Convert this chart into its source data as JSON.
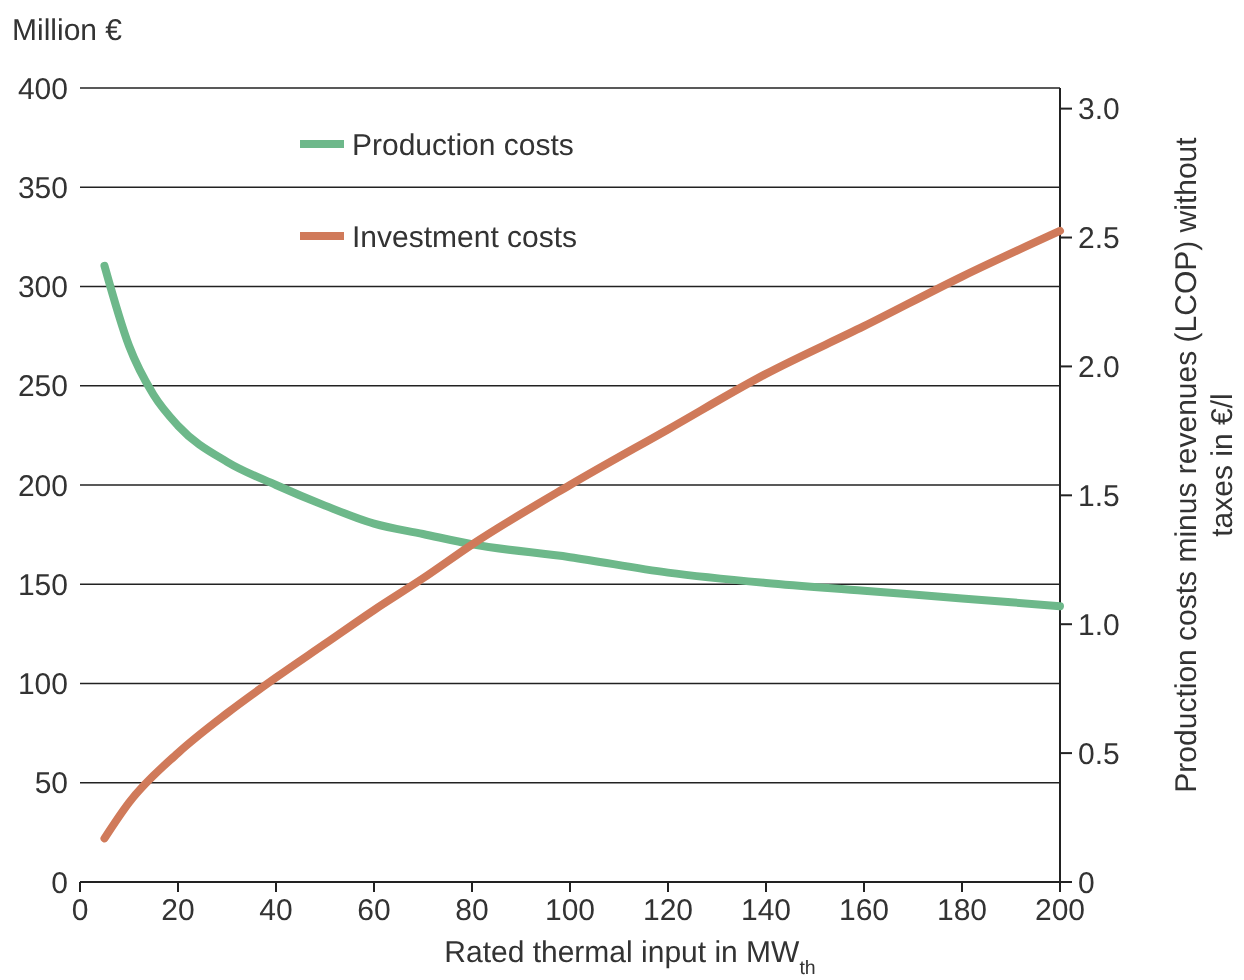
{
  "chart_data": {
    "type": "line",
    "ylabel": "Million €",
    "y2label": "Production costs minus revenues (LCOP) without taxes in €/l",
    "xlabel": "Rated thermal input in MW$_{th}$",
    "xlim": [
      0,
      200
    ],
    "xticks": [
      0,
      20,
      40,
      60,
      80,
      100,
      120,
      140,
      160,
      180,
      200
    ],
    "ylim": [
      0,
      400
    ],
    "yticks": [
      0,
      50,
      100,
      150,
      200,
      250,
      300,
      350,
      400
    ],
    "y2lim": [
      0,
      3.08
    ],
    "y2ticks": [
      {
        "value": 0,
        "label": "0"
      },
      0.5,
      {
        "value": 1,
        "label": "1.0"
      },
      1.5,
      {
        "value": 2,
        "label": "2.0"
      },
      2.5,
      {
        "value": 3,
        "label": "3.0"
      }
    ],
    "grid": "y",
    "legend": "top left",
    "line_style": "solid",
    "series": [
      {
        "name": "Production costs",
        "color": "#6db88a",
        "axis": "y2",
        "x": [
          5,
          10,
          15,
          20,
          30,
          40,
          50,
          60,
          70,
          80,
          100,
          120,
          140,
          160,
          180,
          200
        ],
        "values": [
          2.39,
          2.08,
          1.89,
          1.77,
          1.63,
          1.54,
          1.46,
          1.39,
          1.35,
          1.31,
          1.26,
          1.2,
          1.16,
          1.13,
          1.1,
          1.07
        ]
      },
      {
        "name": "Investment costs",
        "color": "#d07a5a",
        "x": [
          5,
          10,
          20,
          30,
          40,
          50,
          60,
          70,
          80,
          100,
          120,
          140,
          160,
          180,
          200
        ],
        "values": [
          22,
          40,
          65,
          85,
          103,
          120,
          137,
          153,
          170,
          200,
          228,
          256,
          280,
          305,
          328
        ]
      }
    ]
  }
}
